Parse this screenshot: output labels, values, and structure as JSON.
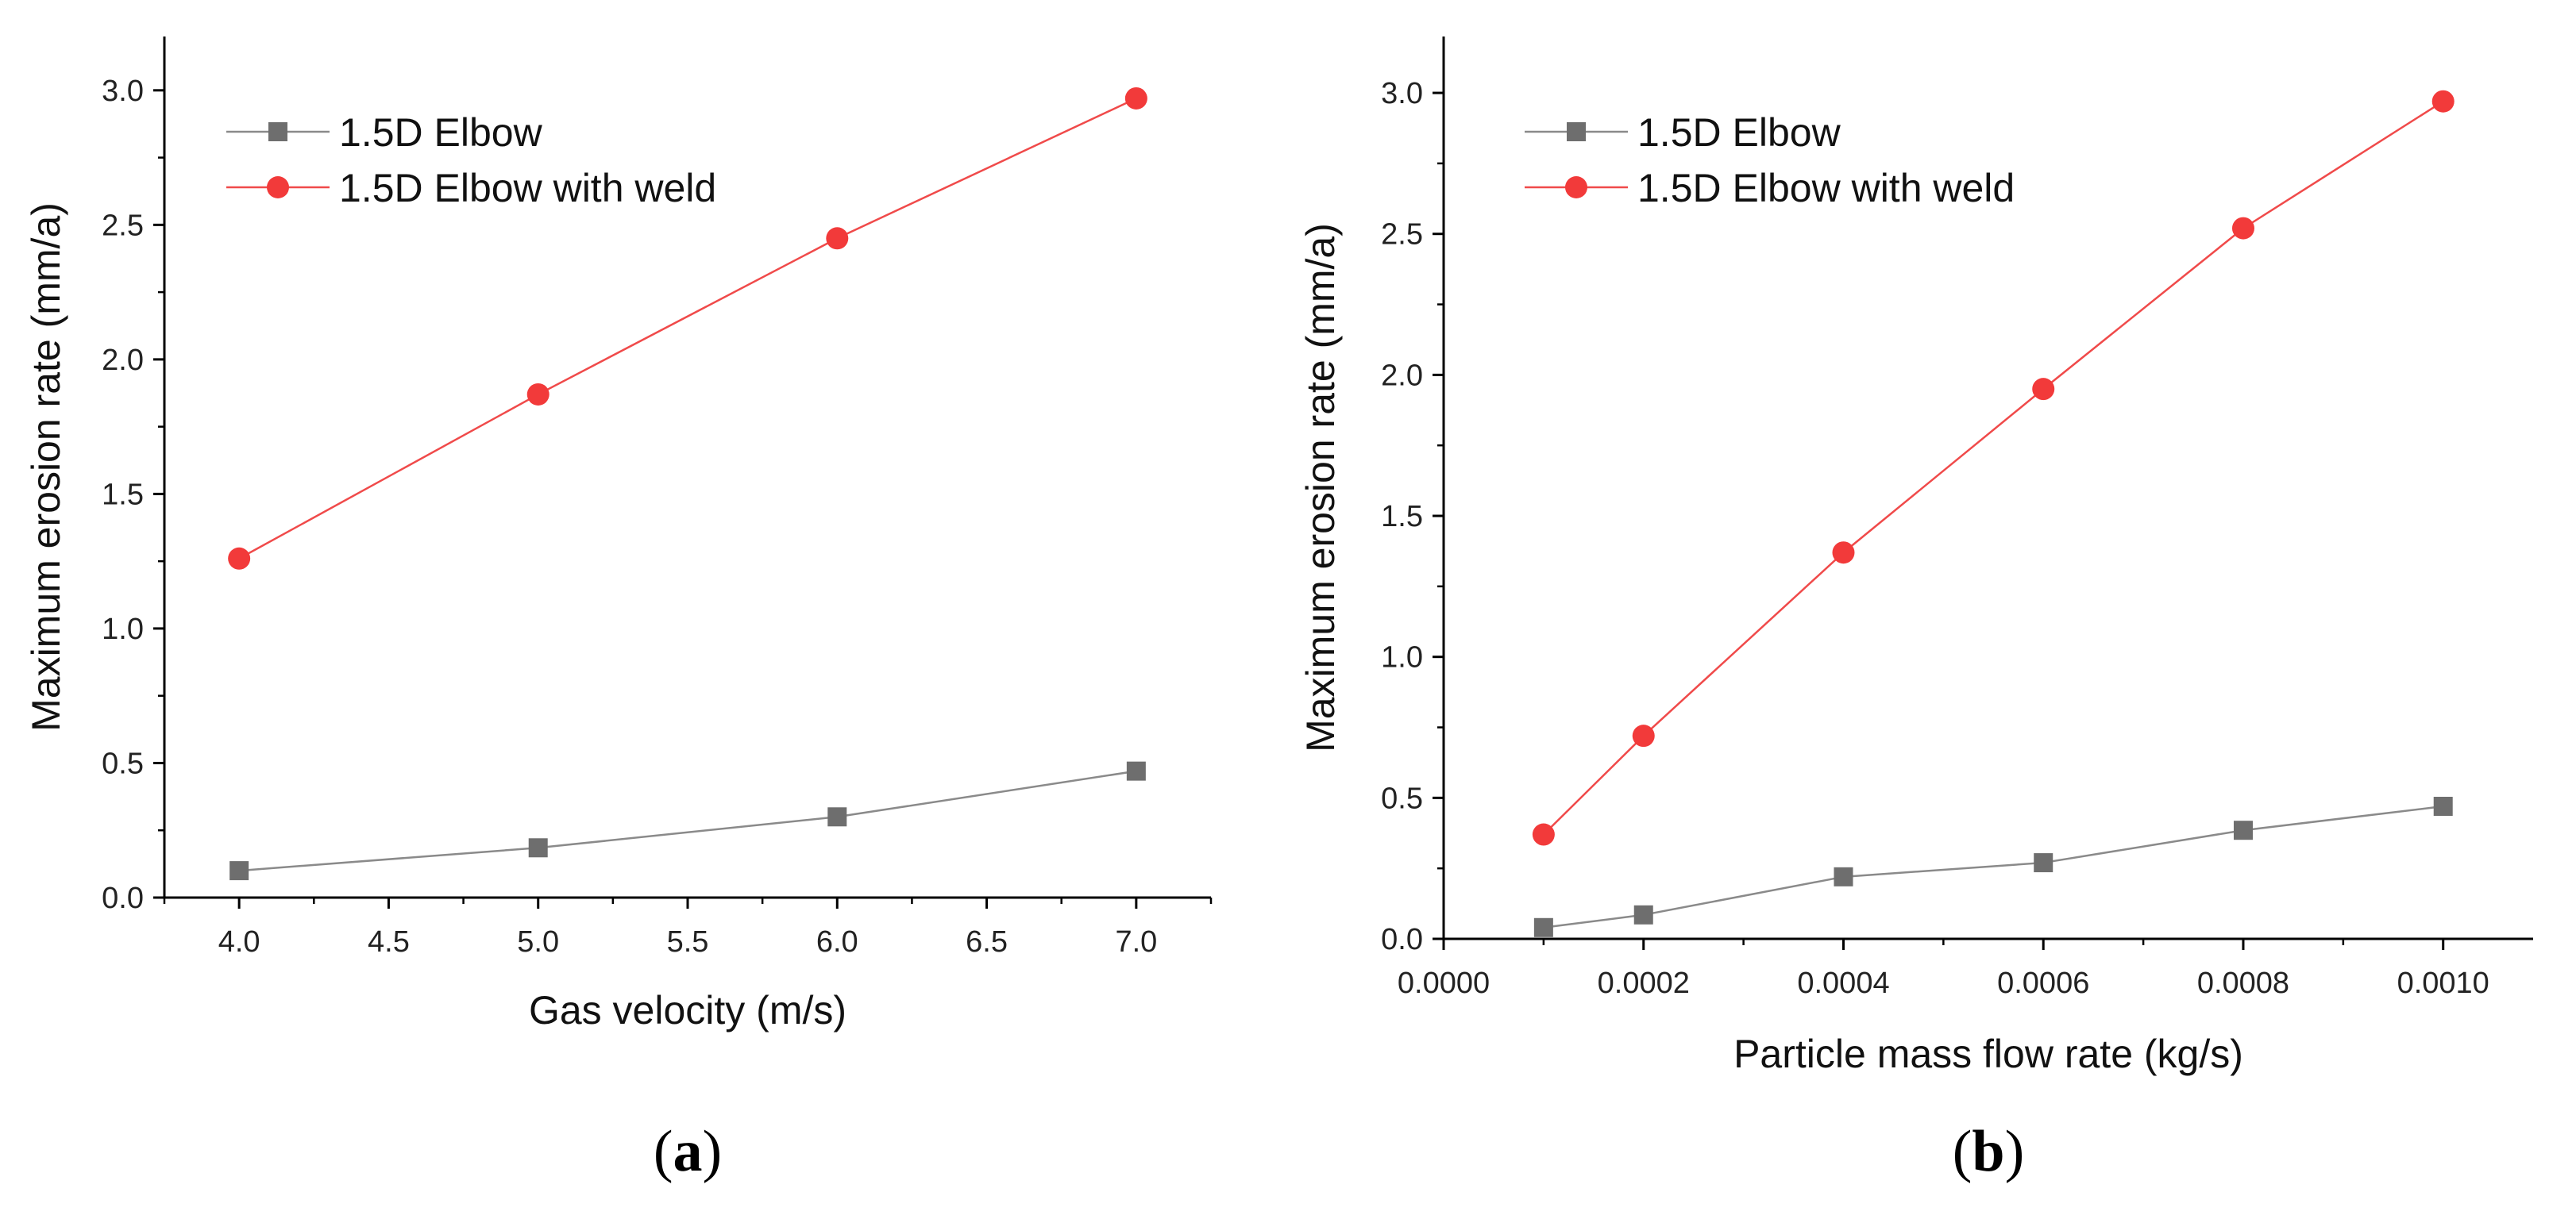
{
  "chart_data": [
    {
      "type": "line",
      "panel_label": "a",
      "title": "",
      "xlabel": "Gas velocity (m/s)",
      "ylabel": "Maximum erosion rate (mm/a)",
      "xlim": [
        3.75,
        7.25
      ],
      "ylim": [
        0,
        3.2
      ],
      "xticks": [
        4.0,
        4.5,
        5.0,
        5.5,
        6.0,
        6.5,
        7.0
      ],
      "xtick_labels": [
        "4.0",
        "4.5",
        "5.0",
        "5.5",
        "6.0",
        "6.5",
        "7.0"
      ],
      "yticks": [
        0,
        0.5,
        1.0,
        1.5,
        2.0,
        2.5,
        3.0
      ],
      "ytick_labels": [
        "0.0",
        "0.5",
        "1.0",
        "1.5",
        "2.0",
        "2.5",
        "3.0"
      ],
      "legend_position": "top-left",
      "x": [
        4.0,
        5.0,
        6.0,
        7.0
      ],
      "series": [
        {
          "name": "1.5D Elbow",
          "marker": "square",
          "color": "#6e6e6e",
          "line_color": "#8a8a8a",
          "values": [
            0.1,
            0.185,
            0.3,
            0.47
          ]
        },
        {
          "name": "1.5D Elbow with weld",
          "marker": "circle",
          "color": "#f23a3a",
          "line_color": "#f04a4a",
          "values": [
            1.26,
            1.87,
            2.45,
            2.97
          ]
        }
      ]
    },
    {
      "type": "line",
      "panel_label": "b",
      "title": "",
      "xlabel": "Particle mass flow rate (kg/s)",
      "ylabel": "Maximum erosion rate (mm/a)",
      "xlim": [
        0.0,
        0.00109
      ],
      "ylim": [
        0,
        3.2
      ],
      "xticks": [
        0.0,
        0.0002,
        0.0004,
        0.0006,
        0.0008,
        0.001
      ],
      "xtick_labels": [
        "0.0000",
        "0.0002",
        "0.0004",
        "0.0006",
        "0.0008",
        "0.0010"
      ],
      "yticks": [
        0,
        0.5,
        1.0,
        1.5,
        2.0,
        2.5,
        3.0
      ],
      "ytick_labels": [
        "0.0",
        "0.5",
        "1.0",
        "1.5",
        "2.0",
        "2.5",
        "3.0"
      ],
      "legend_position": "top-left",
      "x": [
        0.0001,
        0.0002,
        0.0004,
        0.0006,
        0.0008,
        0.001
      ],
      "series": [
        {
          "name": "1.5D Elbow",
          "marker": "square",
          "color": "#6e6e6e",
          "line_color": "#8a8a8a",
          "values": [
            0.04,
            0.085,
            0.22,
            0.27,
            0.385,
            0.47
          ]
        },
        {
          "name": "1.5D Elbow with weld",
          "marker": "circle",
          "color": "#f23a3a",
          "line_color": "#f04a4a",
          "values": [
            0.37,
            0.72,
            1.37,
            1.95,
            2.52,
            2.97
          ]
        }
      ]
    }
  ]
}
